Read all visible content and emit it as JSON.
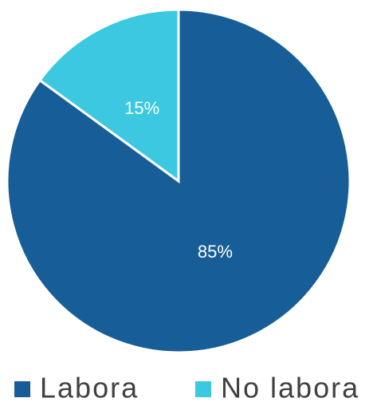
{
  "chart_data": {
    "type": "pie",
    "categories": [
      "Labora",
      "No labora"
    ],
    "values": [
      85,
      15
    ],
    "value_labels": [
      "85%",
      "15%"
    ],
    "colors": [
      "#175e98",
      "#3bc8e0"
    ],
    "legend": "bottom"
  }
}
